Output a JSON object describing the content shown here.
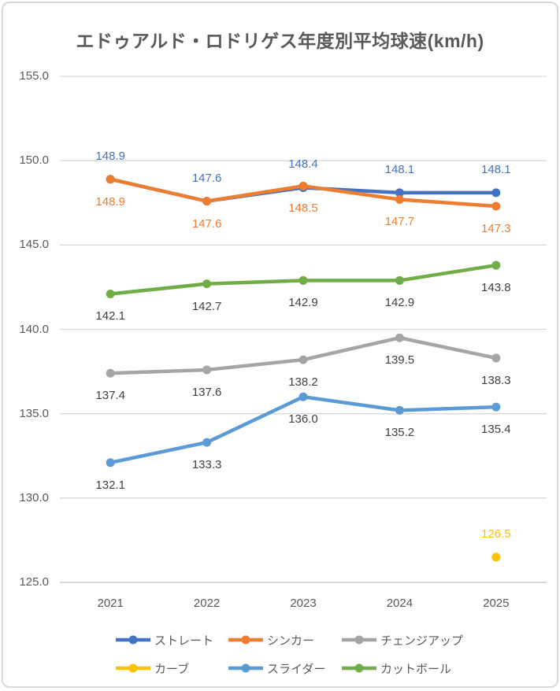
{
  "title": "エドゥアルド・ロドリゲス年度別平均球速(km/h)",
  "colors": {
    "title_text": "#595959",
    "axis_text": "#595959",
    "gridline": "#d9d9d9",
    "axis_line": "#bfbfbf",
    "dark_label": "#404040",
    "frame_border": "#d9d9d9",
    "background": "#ffffff"
  },
  "chart_data": {
    "type": "line",
    "title": "エドゥアルド・ロドリゲス年度別平均球速(km/h)",
    "categories": [
      "2021",
      "2022",
      "2023",
      "2024",
      "2025"
    ],
    "xlabel": "",
    "ylabel": "",
    "ylim": [
      125.0,
      155.0
    ],
    "ytick_step": 5.0,
    "ytick_labels": [
      "155.0",
      "150.0",
      "145.0",
      "140.0",
      "135.0",
      "130.0",
      "125.0"
    ],
    "grid": true,
    "legend_position": "bottom",
    "marker_style": "circle",
    "series": [
      {
        "key": "straight",
        "name": "ストレート",
        "color": "#4472c4",
        "values": [
          148.9,
          147.6,
          148.4,
          148.1,
          148.1
        ],
        "label_position": "above",
        "label_color": "#4472c4"
      },
      {
        "key": "sinker",
        "name": "シンカー",
        "color": "#ed7d31",
        "values": [
          148.9,
          147.6,
          148.5,
          147.7,
          147.3
        ],
        "label_position": "below",
        "label_color": "#ed7d31"
      },
      {
        "key": "changeup",
        "name": "チェンジアップ",
        "color": "#a5a5a5",
        "values": [
          137.4,
          137.6,
          138.2,
          139.5,
          138.3
        ],
        "label_position": "below",
        "label_color": "#404040"
      },
      {
        "key": "curve",
        "name": "カーブ",
        "color": "#ffc000",
        "values": [
          null,
          null,
          null,
          null,
          126.5
        ],
        "label_position": "above",
        "label_color": "#ffc000"
      },
      {
        "key": "slider",
        "name": "スライダー",
        "color": "#5b9bd5",
        "values": [
          132.1,
          133.3,
          136.0,
          135.2,
          135.4
        ],
        "label_position": "below",
        "label_color": "#404040"
      },
      {
        "key": "cutter",
        "name": "カットボール",
        "color": "#70ad47",
        "values": [
          142.1,
          142.7,
          142.9,
          142.9,
          143.8
        ],
        "label_position": "below",
        "label_color": "#404040"
      }
    ]
  }
}
